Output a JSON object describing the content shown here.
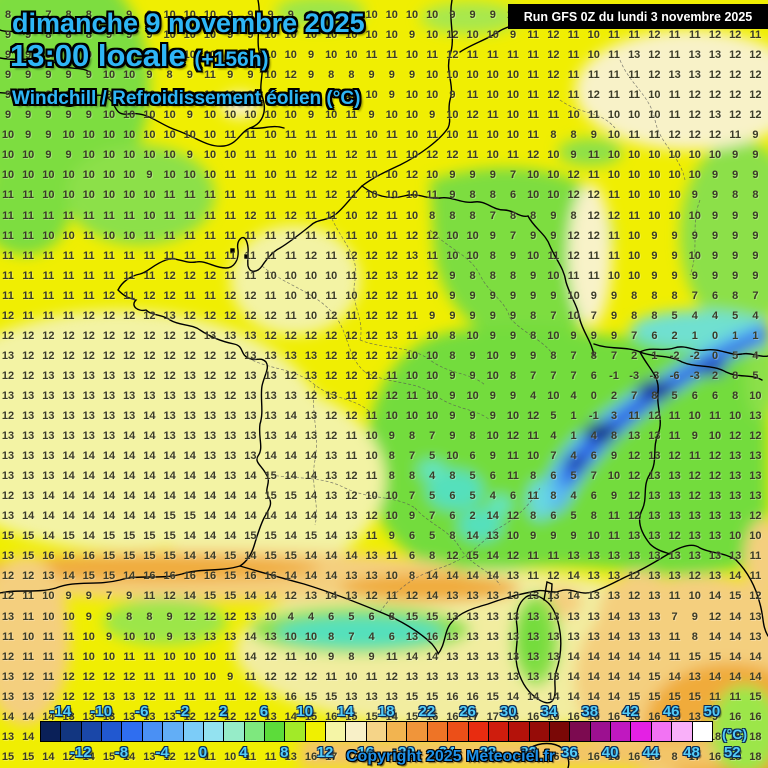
{
  "header": {
    "date_line": "dimanche 9 novembre 2025",
    "time_line": "13:00 locale",
    "offset": "(+156h)",
    "param_line": "Windchill / Refroidissement éolien (°C)",
    "run_label": "Run GFS 0Z du lundi 3 novembre 2025"
  },
  "footer": {
    "copyright": "Copyright 2025 Meteociel.fr",
    "unit": "(°C)"
  },
  "theme_colors": {
    "title_blue": "#2eb6f6",
    "scale_label_cyan": "#53ccf8",
    "number_dark": "#3b3b28",
    "base_yellow": "#f0ee02",
    "pale_yellow": "#f3f3a4",
    "cream": "#f8f2c8",
    "green": "#7ddd3f",
    "teal": "#55e0bc",
    "cyan": "#59b7f2",
    "blue": "#2a63e8",
    "dark_blue": "#102a80",
    "orange": "#f0ab3a",
    "light_orange": "#f4cf7e"
  },
  "scale": {
    "labels_top": [
      "-14",
      "-10",
      "-6",
      "-2",
      "2",
      "6",
      "10",
      "14",
      "18",
      "22",
      "26",
      "30",
      "34",
      "38",
      "42",
      "46",
      "50"
    ],
    "labels_bottom": [
      "-12",
      "-8",
      "-4",
      "0",
      "4",
      "8",
      "12",
      "16",
      "20",
      "24",
      "28",
      "32",
      "36",
      "40",
      "44",
      "48",
      "52"
    ],
    "cell_colors": [
      "#0a2058",
      "#123680",
      "#1a47a8",
      "#2158d0",
      "#2f6ef0",
      "#4a90f4",
      "#62aef6",
      "#7cccf8",
      "#93e2f0",
      "#96ecc8",
      "#7ee87e",
      "#5cdc3a",
      "#a2ea28",
      "#f0f000",
      "#f5f5a6",
      "#f8f0c8",
      "#f5d488",
      "#f2b450",
      "#f0953a",
      "#ee7426",
      "#ec4f18",
      "#e82c10",
      "#cf1d0d",
      "#b4120a",
      "#960c08",
      "#7a0806",
      "#7c0a50",
      "#9c1090",
      "#c018c0",
      "#e420e4",
      "#f273f3",
      "#f9b0f9",
      "#ffffff"
    ]
  },
  "grid": {
    "values": [
      "8 9 7 8 8 8 9 9 10 10 10 9 9 9 9 8 9 9 10 10 10 10 9 9 9 10 10 10 11 11 12 11 12 12 11 12 12 11",
      "9 9 8 8 8 9 9 9 10 10 10 9 9 10 10 10 10 10 10 10 9 10 12 10 10 9 11 12 11 10 11 11 12 11 11 12 12 11",
      "9 9 9 9 9 9 9 9 10 10 10 10 9 10 10 9 10 10 11 11 10 11 12 11 11 11 11 12 11 10 11 13 12 11 13 13 12 12",
      "9 9 9 9 9 10 10 9 8 9 11 9 9 10 12 9 8 8 9 9 9 10 10 10 10 10 11 12 11 11 11 11 12 13 13 12 12 12",
      "9 9 9 9 9 9 10 10 9 9 10 10 9 9 9 9 9 10 10 9 10 10 9 11 10 10 11 12 11 12 11 11 10 11 12 12 12 12",
      "9 9 9 9 9 10 10 10 10 9 10 10 10 10 10 9 10 11 9 10 10 9 10 12 11 10 11 11 10 11 10 10 10 11 12 13 12 12",
      "10 9 9 10 10 10 10 10 10 10 10 11 11 10 11 11 11 11 10 11 10 11 10 11 10 10 11 8 8 9 10 11 11 12 12 12 11 9",
      "10 10 9 9 10 10 10 10 10 9 10 10 11 11 10 11 11 12 11 11 10 12 12 11 10 11 12 10 9 11 10 10 10 10 10 10 9 9",
      "10 10 10 10 10 10 10 9 10 10 10 11 11 10 11 12 12 11 10 10 12 10 9 9 9 7 10 10 12 11 10 10 10 10 10 9 9 9",
      "11 11 10 10 10 10 10 10 11 11 11 11 11 11 11 11 12 11 10 10 10 11 9 8 8 6 10 10 12 12 11 10 10 10 9 9 8 8",
      "11 11 11 11 11 11 11 10 11 11 11 11 12 11 12 11 11 10 12 11 10 8 8 8 7 8 8 9 8 12 12 11 10 10 10 9 9 9",
      "11 11 10 10 11 10 10 11 11 11 11 11 11 11 11 11 11 11 10 11 12 12 10 10 9 7 9 9 12 12 11 10 9 9 9 9 9 9",
      "11 11 11 11 11 11 11 11 11 11 11 11 11 11 11 12 11 12 12 12 13 11 10 10 8 9 10 11 12 11 11 10 9 9 10 9 9 9",
      "11 11 11 11 11 11 11 11 12 12 12 11 11 10 10 10 10 11 12 13 12 12 9 8 8 8 9 10 11 11 10 10 9 9 9 9 9 9",
      "11 11 11 11 11 12 11 12 12 11 11 12 12 11 10 10 11 10 12 12 11 10 9 9 9 9 9 9 10 9 9 8 8 8 7 6 8 7",
      "12 11 11 11 12 12 12 12 13 12 12 12 12 12 11 10 12 11 12 12 11 9 9 9 9 9 8 7 10 7 9 8 8 5 4 4 5 4",
      "12 12 12 12 12 12 12 12 12 12 13 13 13 12 12 12 12 12 12 13 11 10 8 10 9 9 8 10 9 9 9 7 6 2 1 0 1 1",
      "13 12 12 12 12 12 12 12 12 12 12 12 13 13 13 13 12 12 12 12 10 10 8 9 10 9 9 8 7 8 7 2 1 -2 -2 0 5 4",
      "12 12 13 13 13 13 13 12 12 13 12 12 13 13 12 13 12 12 12 11 10 10 9 9 10 8 7 7 7 6 -1 -3 -3 -6 -3 2 8 5",
      "13 13 13 13 13 13 13 13 13 13 13 12 13 13 13 12 13 11 12 12 11 10 9 10 9 9 4 10 4 0 2 7 8 5 6 6 8 10",
      "12 13 13 13 13 13 13 14 13 13 13 13 13 13 14 13 12 12 11 10 10 10 9 9 9 10 12 5 1 -1 3 11 12 11 10 11 10 13",
      "13 13 13 13 13 13 14 14 13 13 13 13 13 13 14 13 12 11 10 9 8 7 9 8 10 12 11 4 1 4 8 13 13 11 9 10 12 12",
      "13 13 13 14 14 14 14 14 14 14 13 13 13 14 14 14 13 11 10 8 7 5 10 6 9 11 10 7 4 6 9 12 13 12 11 12 13 13",
      "13 13 13 14 14 14 14 14 14 14 14 13 14 15 14 14 13 12 11 8 8 4 8 5 6 11 8 6 5 7 10 12 13 13 12 12 13 13",
      "12 13 14 14 14 14 14 14 14 14 14 14 14 15 15 14 13 12 10 10 7 5 6 5 4 6 11 8 4 6 9 12 13 13 12 13 13 13",
      "13 14 14 14 14 14 14 14 15 15 14 14 14 14 14 14 14 13 12 10 9 7 6 2 14 12 8 6 5 8 11 12 13 13 13 13 13 12",
      "15 15 14 15 14 15 15 15 15 14 14 14 15 15 14 15 14 13 11 9 6 5 8 14 13 10 9 9 9 10 11 13 13 12 13 13 10 10",
      "13 15 16 16 16 15 15 15 15 14 14 15 14 15 15 14 14 14 13 11 6 8 12 15 14 12 11 11 13 13 13 13 13 13 13 13 13 11",
      "12 12 13 14 15 15 14 16 16 16 16 15 16 16 14 14 14 13 13 10 8 14 14 14 14 13 11 12 14 13 13 12 13 13 12 13 14 11",
      "12 11 10 9 9 7 9 11 12 14 15 15 14 14 12 13 14 13 12 11 12 14 13 13 13 13 13 13 14 13 13 12 13 11 10 14 15 12",
      "13 11 10 10 9 9 8 8 9 12 12 12 13 10 4 4 6 5 6 8 15 15 13 13 13 13 13 13 13 13 14 13 13 7 9 12 14 13",
      "11 10 11 11 10 9 10 10 9 13 13 13 14 13 10 10 8 7 4 6 13 16 13 13 13 13 13 13 13 13 14 13 13 11 8 14 14 13",
      "12 11 11 11 10 10 11 11 10 10 10 11 14 12 11 10 9 8 9 11 14 14 13 13 13 13 13 13 14 14 14 14 14 11 15 15 14 14",
      "13 12 11 12 12 12 12 11 11 10 10 9 11 12 12 12 11 10 11 12 13 13 13 13 13 13 13 13 14 14 14 14 15 14 13 14 14 14",
      "13 13 12 12 12 13 13 12 11 11 11 11 12 13 16 15 15 13 13 13 15 15 16 16 15 14 14 14 14 14 14 15 15 15 15 11 11 15",
      "14 14 14 13 13 13 13 13 13 12 12 12 12 13 14 15 16 15 15 14 15 16 16 17 17 16 16 16 16 16 16 16 16 15 13 9 16 16",
      "13 14 14 13 13 13 13 13 12 12 10 11 10 10 14 15 16 16 17 17 16 17 16 15 15 15 15 16 16 16 16 16 15 13 9 18 18 18",
      "15 15 14 12 14 15 14 13 12 12 11 10 11 11 13 16 17 17 17 17 16 16 16 16 16 16 16 16 16 16 16 16 15 8 17 16 18 18"
    ]
  }
}
